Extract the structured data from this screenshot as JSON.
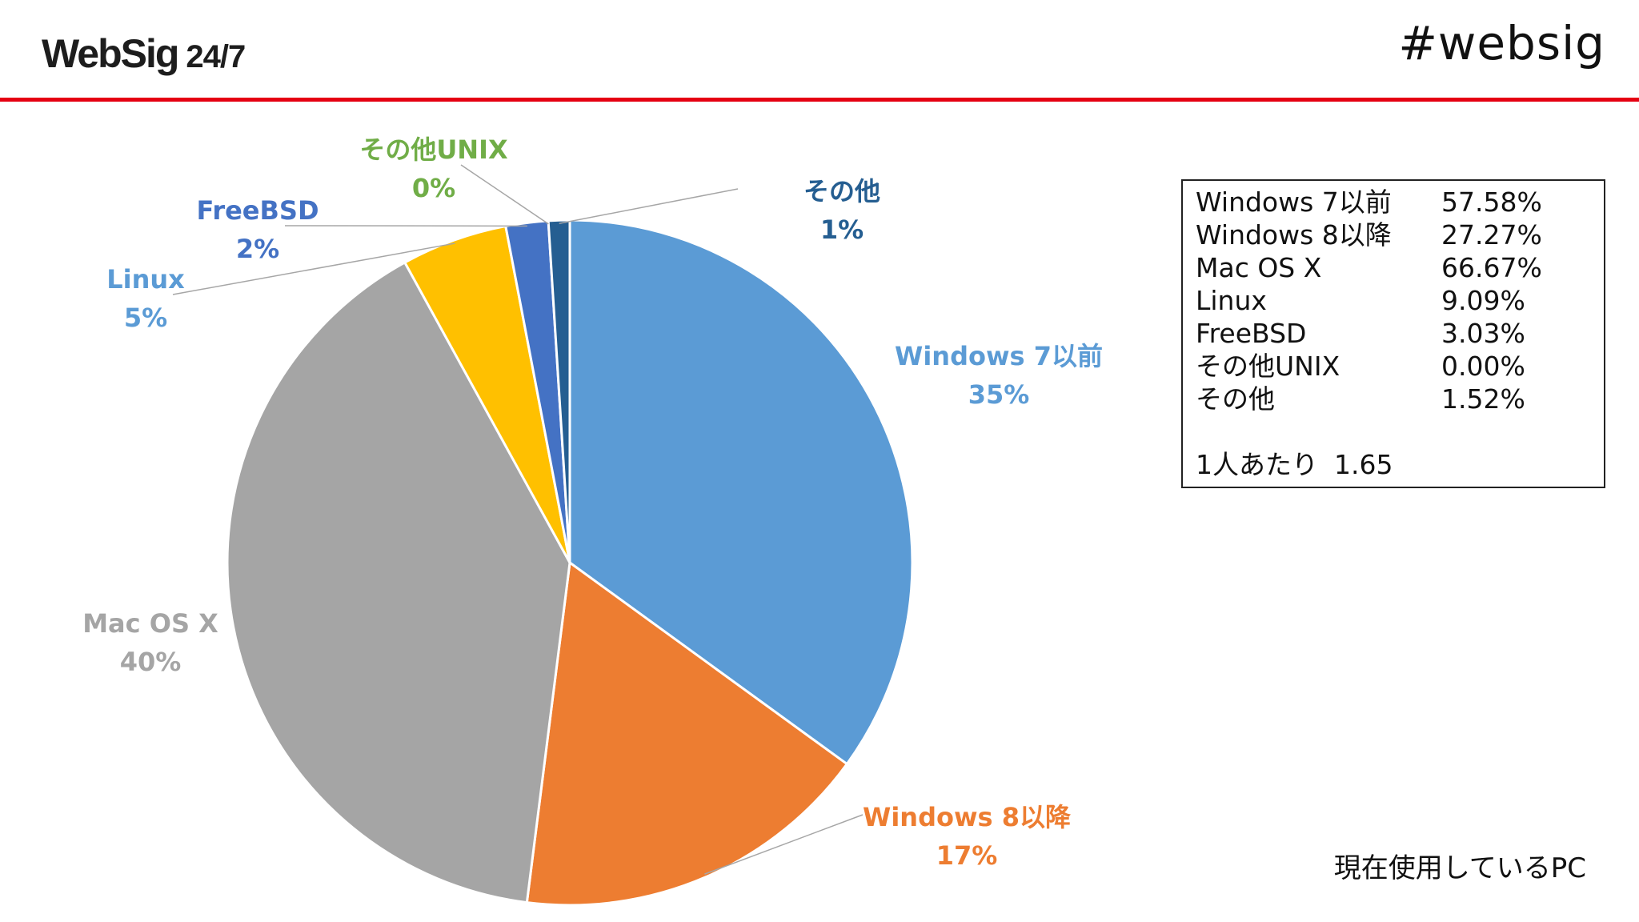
{
  "header": {
    "logo": "WebSig",
    "logo_suffix": "24/7",
    "hashtag": "#websig",
    "rule_color": "#e50012"
  },
  "chart_data": {
    "type": "pie",
    "slices": [
      {
        "name": "Windows 7以前",
        "value": 35,
        "label": "35%",
        "color": "#5b9bd5",
        "label_color": "#5b9bd5"
      },
      {
        "name": "Windows 8以降",
        "value": 17,
        "label": "17%",
        "color": "#ed7d31",
        "label_color": "#ed7d31"
      },
      {
        "name": "Mac OS X",
        "value": 40,
        "label": "40%",
        "color": "#a5a5a5",
        "label_color": "#a5a5a5"
      },
      {
        "name": "Linux",
        "value": 5,
        "label": "5%",
        "color": "#ffc000",
        "label_color": "#5b9bd5"
      },
      {
        "name": "FreeBSD",
        "value": 2,
        "label": "2%",
        "color": "#4472c4",
        "label_color": "#4472c4"
      },
      {
        "name": "その他UNIX",
        "value": 0,
        "label": "0%",
        "color": "#70ad47",
        "label_color": "#70ad47"
      },
      {
        "name": "その他",
        "value": 1,
        "label": "1%",
        "color": "#255e91",
        "label_color": "#255e91"
      }
    ]
  },
  "legend": {
    "rows": [
      {
        "name": "Windows 7以前",
        "value": "57.58%"
      },
      {
        "name": "Windows 8以降",
        "value": "27.27%"
      },
      {
        "name": "Mac OS X",
        "value": "66.67%"
      },
      {
        "name": "Linux",
        "value": "9.09%"
      },
      {
        "name": "FreeBSD",
        "value": "3.03%"
      },
      {
        "name": "その他UNIX",
        "value": "0.00%"
      },
      {
        "name": "その他",
        "value": "1.52%"
      }
    ],
    "per_person_label": "1人あたり",
    "per_person_value": "1.65"
  },
  "caption": "現在使用しているPC"
}
